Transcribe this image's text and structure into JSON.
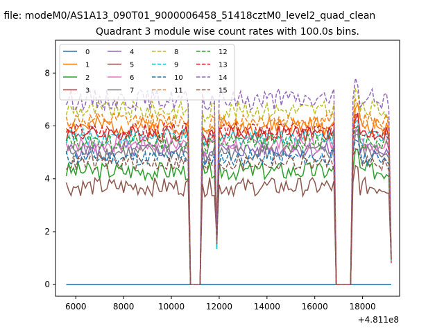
{
  "figure": {
    "suptitle": "n file: modeM0/AS1A13_090T01_9000006458_51418cztM0_level2_quad_clean"
  },
  "chart_data": {
    "type": "line",
    "title": "Quadrant 3 module wise count rates with 100.0s bins.",
    "xlabel": "",
    "ylabel": "",
    "x_offset_label": "+4.811e8",
    "xlim": [
      5150,
      19550
    ],
    "ylim": [
      -0.44,
      9.24
    ],
    "xticks": [
      "6000",
      "8000",
      "10000",
      "12000",
      "14000",
      "16000",
      "18000"
    ],
    "yticks": [
      "0",
      "2",
      "4",
      "6",
      "8"
    ],
    "xtick_values": [
      6000,
      8000,
      10000,
      12000,
      14000,
      16000,
      18000
    ],
    "ytick_values": [
      0,
      2,
      4,
      6,
      8
    ],
    "x": [
      5600,
      5700,
      5800,
      5900,
      6000,
      6100,
      6200,
      6300,
      6400,
      6500,
      6600,
      6700,
      6800,
      6900,
      7000,
      7100,
      7200,
      7300,
      7400,
      7500,
      7600,
      7700,
      7800,
      7900,
      8000,
      8100,
      8200,
      8300,
      8400,
      8500,
      8600,
      8700,
      8800,
      8900,
      9000,
      9100,
      9200,
      9300,
      9400,
      9500,
      9600,
      9700,
      9800,
      9900,
      10000,
      10100,
      10200,
      10300,
      10400,
      10500,
      10600,
      10700,
      10800,
      10900,
      11000,
      11100,
      11200,
      11300,
      11400,
      11500,
      11600,
      11700,
      11800,
      11900,
      12000,
      12100,
      12200,
      12300,
      12400,
      12500,
      12600,
      12700,
      12800,
      12900,
      13000,
      13100,
      13200,
      13300,
      13400,
      13500,
      13600,
      13700,
      13800,
      13900,
      14000,
      14100,
      14200,
      14300,
      14400,
      14500,
      14600,
      14700,
      14800,
      14900,
      15000,
      15100,
      15200,
      15300,
      15400,
      15500,
      15600,
      15700,
      15800,
      15900,
      16000,
      16100,
      16200,
      16300,
      16400,
      16500,
      16600,
      16700,
      16800,
      16900,
      17000,
      17100,
      17200,
      17300,
      17400,
      17500,
      17600,
      17700,
      17800,
      17900,
      18000,
      18100,
      18200,
      18300,
      18400,
      18500,
      18600,
      18700,
      18800,
      18900,
      19000,
      19100,
      19200
    ],
    "series": [
      {
        "name": "0",
        "color": "#1f77b4",
        "dash": "solid",
        "base": 0.0,
        "amp": 0.0,
        "seed": 1
      },
      {
        "name": "1",
        "color": "#ff7f0e",
        "dash": "solid",
        "base": 6.0,
        "amp": 0.35,
        "seed": 2
      },
      {
        "name": "2",
        "color": "#2ca02c",
        "dash": "solid",
        "base": 4.3,
        "amp": 0.35,
        "seed": 3
      },
      {
        "name": "3",
        "color": "#d62728",
        "dash": "solid",
        "base": 5.7,
        "amp": 0.3,
        "seed": 4
      },
      {
        "name": "4",
        "color": "#9467bd",
        "dash": "solid",
        "base": 5.1,
        "amp": 0.3,
        "seed": 5
      },
      {
        "name": "5",
        "color": "#8c564b",
        "dash": "solid",
        "base": 3.7,
        "amp": 0.35,
        "seed": 6
      },
      {
        "name": "6",
        "color": "#e377c2",
        "dash": "solid",
        "base": 5.3,
        "amp": 0.3,
        "seed": 7
      },
      {
        "name": "7",
        "color": "#7f7f7f",
        "dash": "solid",
        "base": 5.0,
        "amp": 0.3,
        "seed": 8
      },
      {
        "name": "8",
        "color": "#bcbd22",
        "dash": "dashed",
        "base": 6.6,
        "amp": 0.35,
        "seed": 9
      },
      {
        "name": "9",
        "color": "#17becf",
        "dash": "dashed",
        "base": 5.6,
        "amp": 0.3,
        "seed": 10
      },
      {
        "name": "10",
        "color": "#1f77b4",
        "dash": "dashed",
        "base": 4.8,
        "amp": 0.3,
        "seed": 11
      },
      {
        "name": "11",
        "color": "#ff7f0e",
        "dash": "dashed",
        "base": 6.2,
        "amp": 0.3,
        "seed": 12
      },
      {
        "name": "12",
        "color": "#2ca02c",
        "dash": "dashed",
        "base": 5.4,
        "amp": 0.3,
        "seed": 13
      },
      {
        "name": "13",
        "color": "#d62728",
        "dash": "dashed",
        "base": 5.8,
        "amp": 0.3,
        "seed": 14
      },
      {
        "name": "14",
        "color": "#9467bd",
        "dash": "dashed",
        "base": 7.0,
        "amp": 0.4,
        "seed": 15
      },
      {
        "name": "15",
        "color": "#8c564b",
        "dash": "dashed",
        "base": 4.6,
        "amp": 0.3,
        "seed": 16
      }
    ],
    "gaps": [
      [
        10750,
        11250
      ],
      [
        16850,
        17550
      ]
    ],
    "legend_loc": "upper left",
    "legend_ncol": 4,
    "grid": false
  }
}
